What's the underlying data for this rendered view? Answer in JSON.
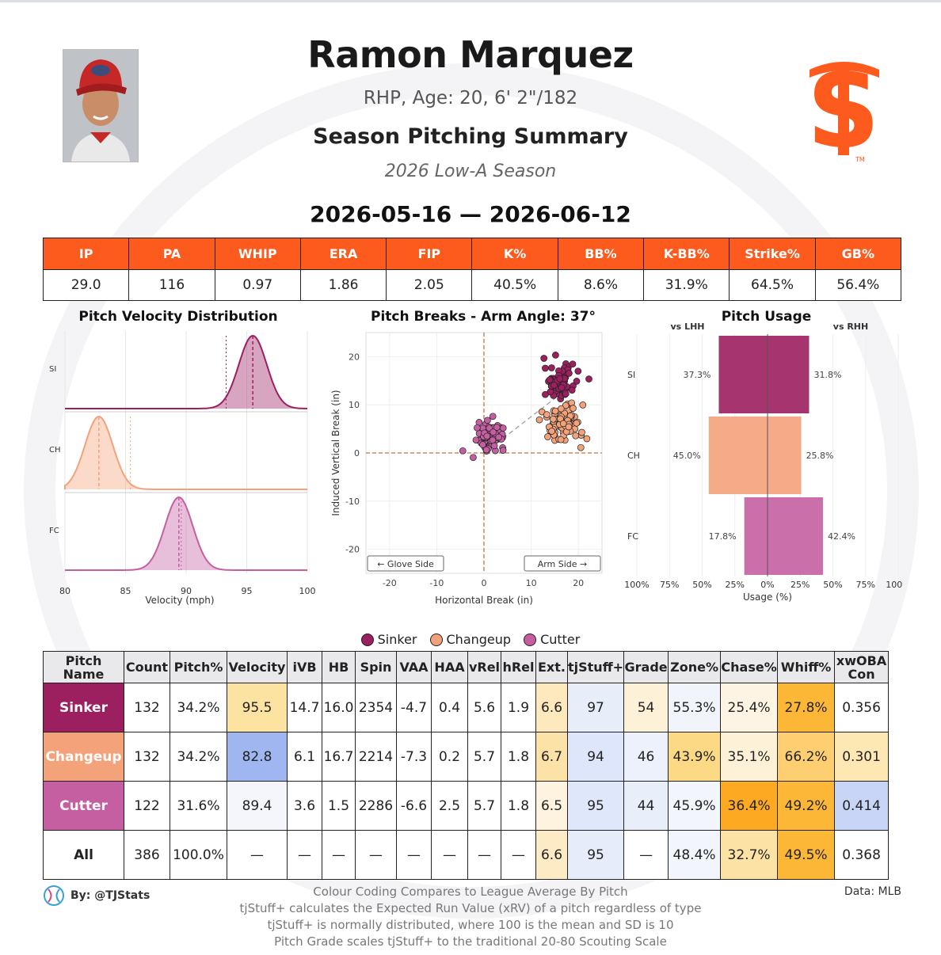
{
  "header": {
    "name": "Ramon Marquez",
    "info": "RHP, Age: 20, 6' 2\"/182",
    "title": "Season Pitching Summary",
    "season": "2026 Low-A Season",
    "date_range": "2026-05-16 — 2026-06-12"
  },
  "summary_stats": {
    "headers": [
      "IP",
      "PA",
      "WHIP",
      "ERA",
      "FIP",
      "K%",
      "BB%",
      "K-BB%",
      "Strike%",
      "GB%"
    ],
    "values": [
      "29.0",
      "116",
      "0.97",
      "1.86",
      "2.05",
      "40.5%",
      "8.6%",
      "31.9%",
      "64.5%",
      "56.4%"
    ]
  },
  "colors": {
    "sinker": "#9c1f5f",
    "changeup": "#f4a27a",
    "cutter": "#c55fa2",
    "orange": "#fd5a1e"
  },
  "chart_data": [
    {
      "type": "area",
      "title": "Pitch Velocity Distribution",
      "xlabel": "Velocity (mph)",
      "xlim": [
        80,
        100
      ],
      "ticks": [
        "80",
        "85",
        "90",
        "95",
        "100"
      ],
      "series": [
        {
          "name": "SI",
          "mean": 95.5,
          "league_avg": 93.3
        },
        {
          "name": "CH",
          "mean": 82.8,
          "league_avg": 85.4
        },
        {
          "name": "FC",
          "mean": 89.4,
          "league_avg": 89.6
        }
      ]
    },
    {
      "type": "scatter",
      "title": "Pitch Breaks - Arm Angle: 37°",
      "xlabel": "Horizontal Break (in)",
      "ylabel": "Induced Vertical Break (in)",
      "xlim": [
        -25,
        25
      ],
      "ylim": [
        -25,
        25
      ],
      "xticks": [
        "-20",
        "-10",
        "0",
        "10",
        "20"
      ],
      "yticks": [
        "20",
        "10",
        "0",
        "-10",
        "-20"
      ],
      "clusters": [
        {
          "name": "Sinker",
          "hb": 16.0,
          "ivb": 14.7,
          "count": 132
        },
        {
          "name": "Changeup",
          "hb": 16.7,
          "ivb": 6.1,
          "count": 132
        },
        {
          "name": "Cutter",
          "hb": 1.5,
          "ivb": 3.6,
          "count": 122
        }
      ],
      "labels": {
        "glove": "← Glove Side",
        "arm": "Arm Side →"
      }
    },
    {
      "type": "bar",
      "title": "Pitch Usage",
      "xlabel": "Usage (%)",
      "categories": [
        "SI",
        "CH",
        "FC"
      ],
      "series": [
        {
          "name": "vs LHH",
          "values": [
            37.3,
            45.0,
            17.8
          ]
        },
        {
          "name": "vs RHH",
          "values": [
            31.8,
            25.8,
            42.4
          ]
        }
      ],
      "value_labels": {
        "lhh": [
          "37.3%",
          "45.0%",
          "17.8%"
        ],
        "rhh": [
          "31.8%",
          "25.8%",
          "42.4%"
        ]
      },
      "ticks": [
        "100%",
        "75%",
        "50%",
        "25%",
        "0%",
        "25%",
        "50%",
        "75%",
        "100%"
      ]
    }
  ],
  "legend": [
    "Sinker",
    "Changeup",
    "Cutter"
  ],
  "pitch_table": {
    "headers": [
      "Pitch Name",
      "Count",
      "Pitch%",
      "Velocity",
      "iVB",
      "HB",
      "Spin",
      "VAA",
      "HAA",
      "vRel",
      "hRel",
      "Ext.",
      "tjStuff+",
      "Grade",
      "Zone%",
      "Chase%",
      "Whiff%",
      "xwOBA Con"
    ],
    "rows": [
      {
        "cells": [
          "Sinker",
          "132",
          "34.2%",
          "95.5",
          "14.7",
          "16.0",
          "2354",
          "-4.7",
          "0.4",
          "5.6",
          "1.9",
          "6.6",
          "97",
          "54",
          "55.3%",
          "25.4%",
          "27.8%",
          "0.356"
        ],
        "bg": [
          "#9c1f5f",
          "#fff",
          "#fff",
          "#fde3a1",
          "#fff",
          "#fff",
          "#fff",
          "#fff",
          "#fff",
          "#fff",
          "#fff",
          "#fde9bd",
          "#e8edfa",
          "#fdf1d8",
          "#f1f4fb",
          "#fdf4e3",
          "#fdb736",
          "#fff"
        ]
      },
      {
        "cells": [
          "Changeup",
          "132",
          "34.2%",
          "82.8",
          "6.1",
          "16.7",
          "2214",
          "-7.3",
          "0.2",
          "5.7",
          "1.8",
          "6.7",
          "94",
          "46",
          "43.9%",
          "35.1%",
          "66.2%",
          "0.301"
        ],
        "bg": [
          "#f4a27a",
          "#fff",
          "#fff",
          "#9fb6f0",
          "#fff",
          "#fff",
          "#fff",
          "#fff",
          "#fff",
          "#fff",
          "#fff",
          "#fde2a8",
          "#dde6fb",
          "#edf1fb",
          "#fcd985",
          "#fdf1d8",
          "#fdcf70",
          "#fde7b3"
        ]
      },
      {
        "cells": [
          "Cutter",
          "122",
          "31.6%",
          "89.4",
          "3.6",
          "1.5",
          "2286",
          "-6.6",
          "2.5",
          "5.7",
          "1.8",
          "6.5",
          "95",
          "44",
          "45.9%",
          "36.4%",
          "49.2%",
          "0.414"
        ],
        "bg": [
          "#c55fa2",
          "#fff",
          "#fff",
          "#f5f6fb",
          "#fff",
          "#fff",
          "#fff",
          "#fff",
          "#fff",
          "#fff",
          "#fff",
          "#fdf3de",
          "#dfe7fb",
          "#e9eefb",
          "#f2f5fc",
          "#fdaa22",
          "#fdb736",
          "#c8d5f7"
        ]
      },
      {
        "cells": [
          "All",
          "386",
          "100.0%",
          "—",
          "—",
          "—",
          "—",
          "—",
          "—",
          "—",
          "—",
          "6.6",
          "95",
          "—",
          "48.4%",
          "32.7%",
          "49.5%",
          "0.368"
        ],
        "bg": [
          "#fff",
          "#fff",
          "#fff",
          "#fff",
          "#fff",
          "#fff",
          "#fff",
          "#fff",
          "#fff",
          "#fff",
          "#fff",
          "#fdebc6",
          "#e6ecfa",
          "#fff",
          "#f2f5fc",
          "#fde2a5",
          "#fdb736",
          "#fff"
        ]
      }
    ]
  },
  "footer": {
    "by": "By: @TJStats",
    "data": "Data: MLB",
    "notes": [
      "Colour Coding Compares to League Average By Pitch",
      "tjStuff+ calculates the Expected Run Value (xRV) of a pitch regardless of type",
      "tjStuff+ is normally distributed, where 100 is the mean and SD is 10",
      "Pitch Grade scales tjStuff+ to the traditional 20-80 Scouting Scale"
    ]
  }
}
